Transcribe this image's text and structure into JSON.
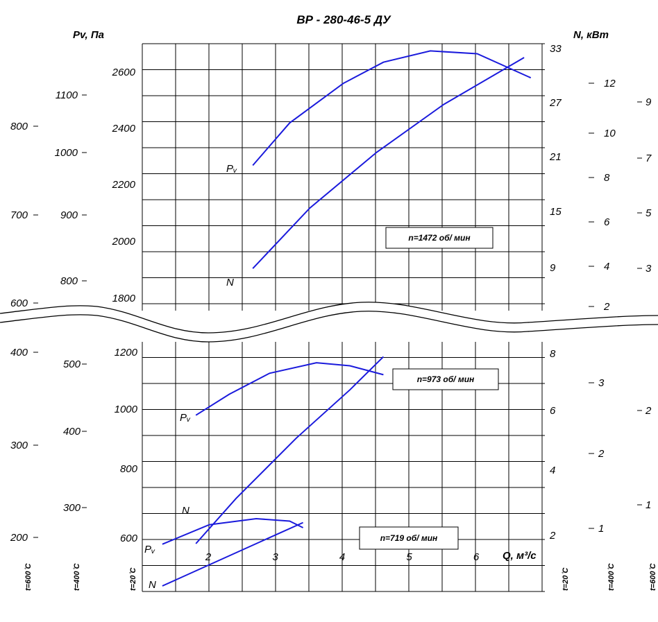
{
  "chart_data": {
    "type": "line",
    "title": "ВР - 280-46-5 ДУ",
    "x_label": "Q, м³/с",
    "x_ticks": [
      "2",
      "3",
      "4",
      "5",
      "6"
    ],
    "y_left_label": "Pv, Па",
    "y_right_label": "N, кВт",
    "axis_bottom_labels": [
      "t=600 ̊C",
      "t=400 ̊C",
      "t=20 ̊C",
      "t=20 ̊C",
      "t=400 ̊C",
      "t=600 ̊C"
    ],
    "pressure_axes": {
      "t20_upper": [
        "2600",
        "2400",
        "2200",
        "2000",
        "1800"
      ],
      "t20_lower": [
        "1200",
        "1000",
        "800",
        "600"
      ],
      "t400_upper": [
        "1100",
        "1000",
        "900",
        "800"
      ],
      "t400_lower": [
        "500",
        "400",
        "300"
      ],
      "t600_upper": [
        "800",
        "700",
        "600"
      ],
      "t600_lower": [
        "400",
        "300",
        "200"
      ]
    },
    "power_axes": {
      "t20_upper": [
        "33",
        "27",
        "21",
        "15",
        "9"
      ],
      "t20_lower": [
        "8",
        "6",
        "4",
        "2"
      ],
      "t400_upper": [
        "12",
        "10",
        "8",
        "6",
        "4",
        "2"
      ],
      "t400_lower": [
        "3",
        "2",
        "1"
      ],
      "t600_upper": [
        "9",
        "7",
        "5",
        "3"
      ],
      "t600_lower": [
        "2",
        "1"
      ]
    },
    "curve_labels": {
      "pressure": "Pᵥ",
      "power": "N"
    },
    "series": [
      {
        "name": "n=1472 об/ мин",
        "pressure": [
          [
            2.65,
            2270
          ],
          [
            3.2,
            2420
          ],
          [
            4.0,
            2560
          ],
          [
            4.6,
            2635
          ],
          [
            5.3,
            2675
          ],
          [
            6.0,
            2665
          ],
          [
            6.8,
            2580
          ]
        ],
        "power": [
          [
            2.65,
            8.6
          ],
          [
            3.5,
            15.3
          ],
          [
            4.5,
            21.5
          ],
          [
            5.5,
            26.8
          ],
          [
            6.7,
            32.0
          ]
        ]
      },
      {
        "name": "n=973 об/ мин",
        "pressure": [
          [
            1.8,
            990
          ],
          [
            2.3,
            1060
          ],
          [
            2.9,
            1130
          ],
          [
            3.6,
            1165
          ],
          [
            4.1,
            1155
          ],
          [
            4.6,
            1125
          ]
        ],
        "power": [
          [
            1.8,
            1.7
          ],
          [
            2.4,
            3.2
          ],
          [
            3.3,
            5.2
          ],
          [
            4.1,
            6.8
          ],
          [
            4.6,
            7.9
          ]
        ]
      },
      {
        "name": "n=719 об/ мин",
        "pressure": [
          [
            1.3,
            560
          ],
          [
            2.0,
            625
          ],
          [
            2.7,
            645
          ],
          [
            3.2,
            637
          ],
          [
            3.4,
            615
          ]
        ],
        "power": [
          [
            1.3,
            0.3
          ],
          [
            2.0,
            1.0
          ],
          [
            2.7,
            1.7
          ],
          [
            3.4,
            2.4
          ]
        ]
      }
    ]
  }
}
